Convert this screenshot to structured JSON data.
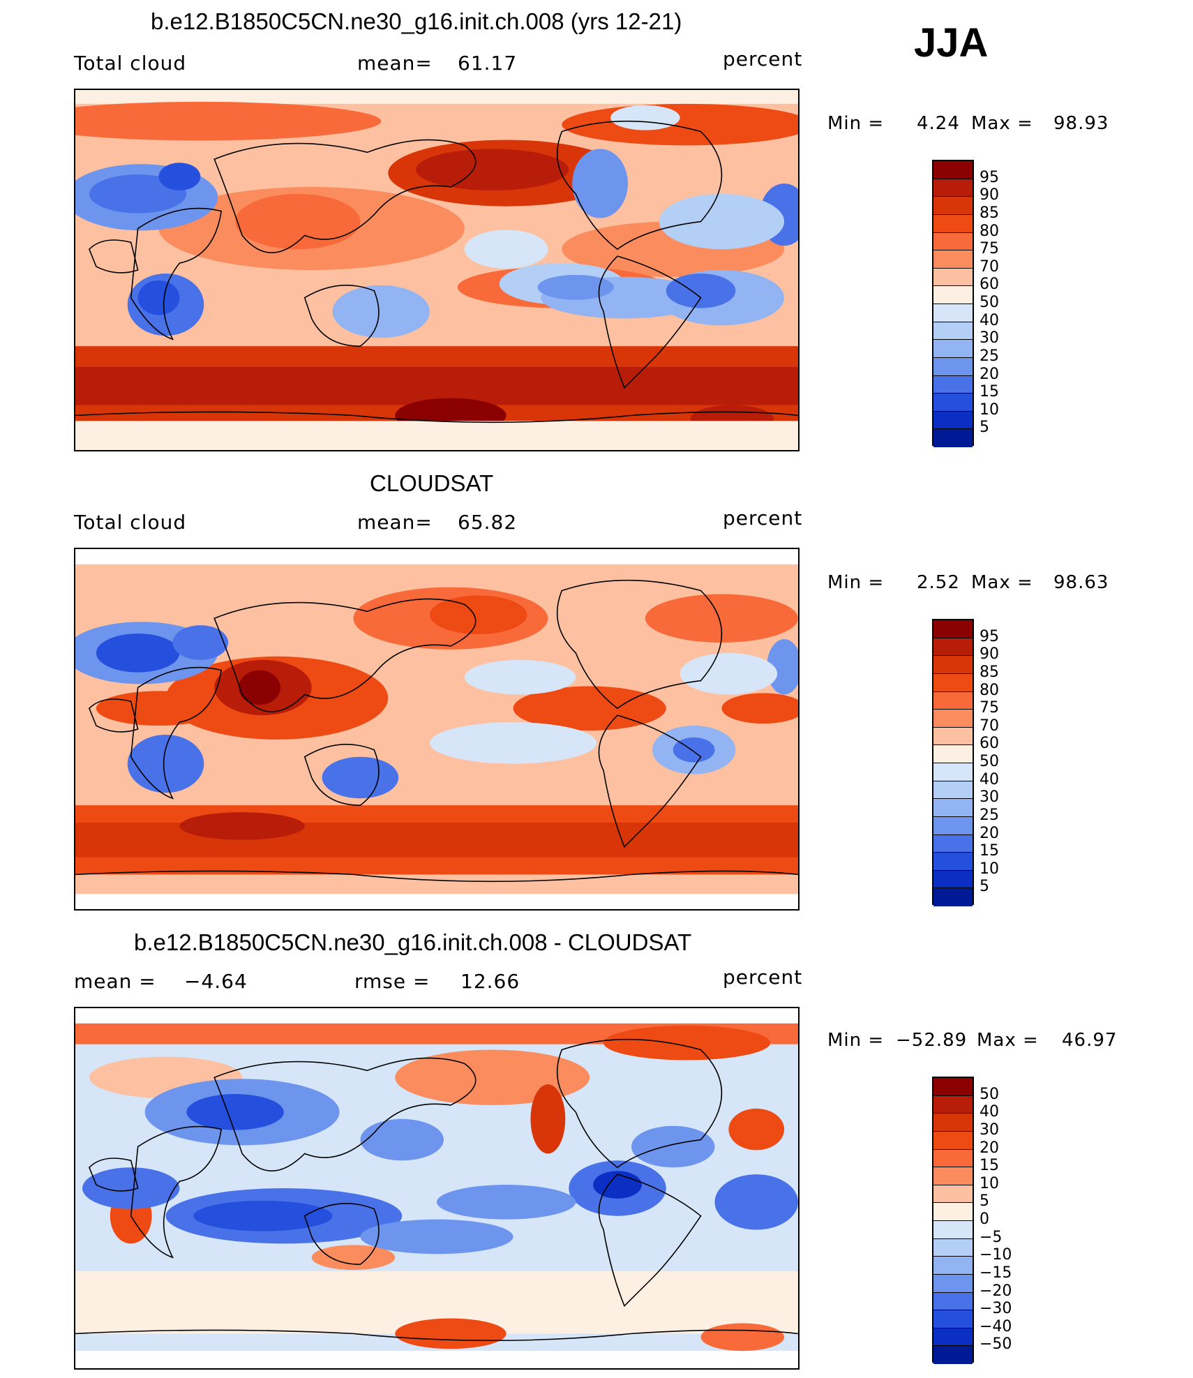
{
  "season": "JJA",
  "panels": [
    {
      "title": "b.e12.B1850C5CN.ne30_g16.init.ch.008 (yrs 12-21)",
      "left_label": "Total cloud",
      "mean_label": "mean=",
      "mean_value": "61.17",
      "units": "percent",
      "min_label": "Min =",
      "min_value": "4.24",
      "max_label": "Max =",
      "max_value": "98.93",
      "levels": [
        "95",
        "90",
        "85",
        "80",
        "75",
        "70",
        "60",
        "50",
        "40",
        "30",
        "25",
        "20",
        "15",
        "10",
        "5"
      ]
    },
    {
      "title": "CLOUDSAT",
      "left_label": "Total cloud",
      "mean_label": "mean=",
      "mean_value": "65.82",
      "units": "percent",
      "min_label": "Min =",
      "min_value": "2.52",
      "max_label": "Max =",
      "max_value": "98.63",
      "levels": [
        "95",
        "90",
        "85",
        "80",
        "75",
        "70",
        "60",
        "50",
        "40",
        "30",
        "25",
        "20",
        "15",
        "10",
        "5"
      ]
    },
    {
      "title": "b.e12.B1850C5CN.ne30_g16.init.ch.008 - CLOUDSAT",
      "left_label": "mean =",
      "left_value": "−4.64",
      "mean_label": "rmse =",
      "mean_value": "12.66",
      "units": "percent",
      "min_label": "Min =",
      "min_value": "−52.89",
      "max_label": "Max =",
      "max_value": "46.97",
      "levels": [
        "50",
        "40",
        "30",
        "20",
        "15",
        "10",
        "5",
        "0",
        "−5",
        "−10",
        "−15",
        "−20",
        "−30",
        "−40",
        "−50"
      ]
    }
  ],
  "colors": {
    "scale": [
      "#8b0000",
      "#b81d0a",
      "#d83508",
      "#ee4a14",
      "#f86a3a",
      "#fb8c5e",
      "#fdc1a1",
      "#fdf0e3",
      "#d6e6f8",
      "#b4cff5",
      "#92b4f2",
      "#6e95ee",
      "#4a72e8",
      "#2550dd",
      "#0c2fc3",
      "#001a95"
    ]
  }
}
